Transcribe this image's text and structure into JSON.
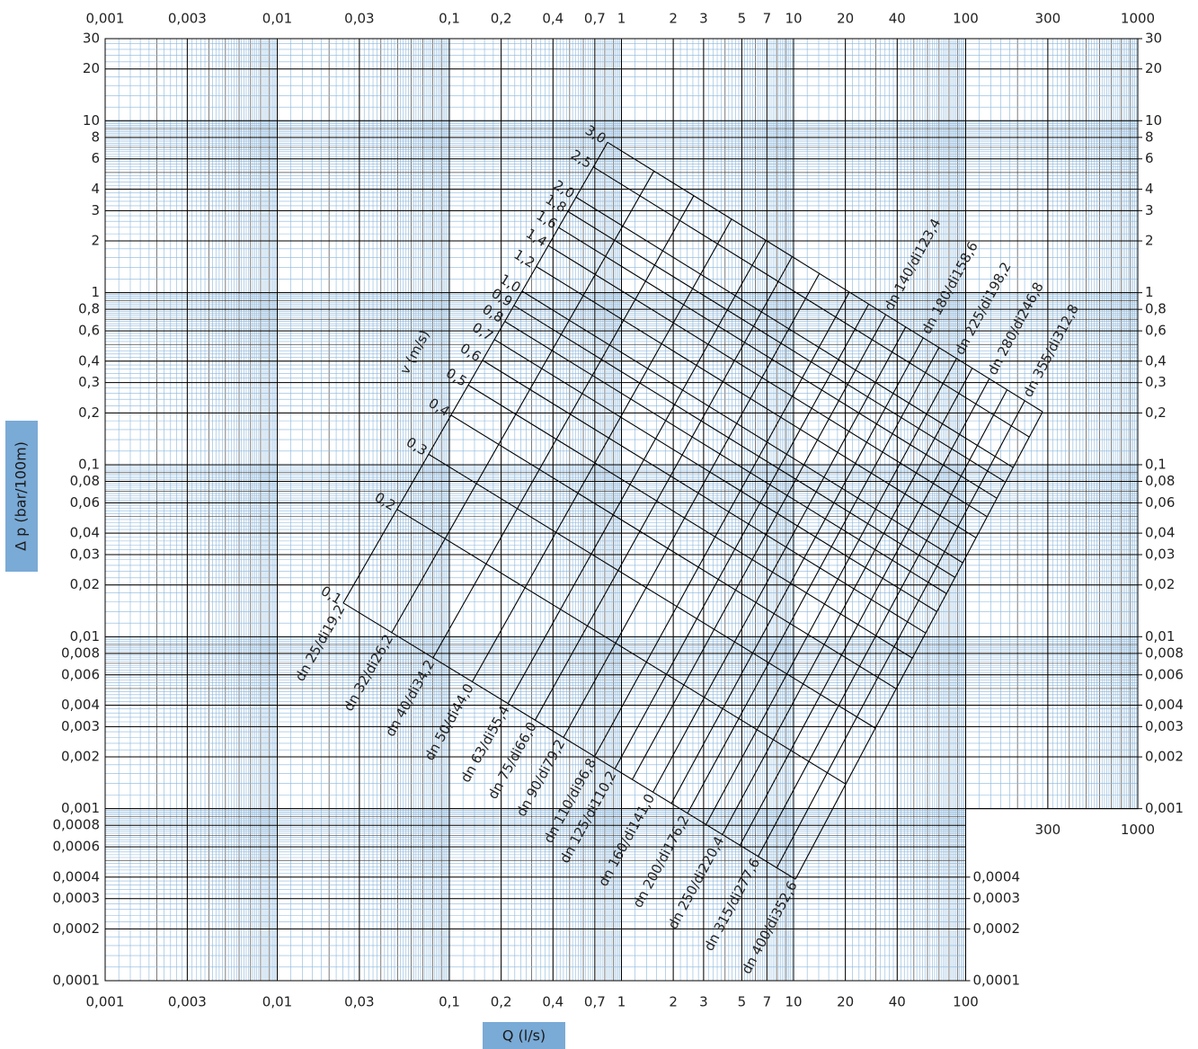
{
  "chart_data": {
    "type": "line",
    "x_label": "Q (l/s)",
    "y_label": "Δ p (bar/100m)",
    "velocity_label": "v (m/s)",
    "log_x": true,
    "log_y": true,
    "grid": true,
    "grid_color": "#8ab6dc",
    "xlim": [
      0.001,
      1000
    ],
    "ylim": [
      0.0001,
      30
    ],
    "grid_cutout": {
      "x": 100,
      "y": 0.001
    },
    "xticks": [
      {
        "value": 0.001,
        "label": "0,001"
      },
      {
        "value": 0.003,
        "label": "0,003"
      },
      {
        "value": 0.01,
        "label": "0,01"
      },
      {
        "value": 0.03,
        "label": "0,03"
      },
      {
        "value": 0.1,
        "label": "0,1"
      },
      {
        "value": 0.2,
        "label": "0,2"
      },
      {
        "value": 0.4,
        "label": "0,4"
      },
      {
        "value": 0.7,
        "label": "0,7"
      },
      1,
      2,
      3,
      5,
      7,
      10,
      20,
      40,
      100,
      300,
      1000
    ],
    "yticks": [
      30,
      20,
      10,
      8,
      6,
      4,
      3,
      2,
      1,
      {
        "value": 0.8,
        "label": "0,8"
      },
      {
        "value": 0.6,
        "label": "0,6"
      },
      {
        "value": 0.4,
        "label": "0,4"
      },
      {
        "value": 0.3,
        "label": "0,3"
      },
      {
        "value": 0.2,
        "label": "0,2"
      },
      {
        "value": 0.1,
        "label": "0,1"
      },
      {
        "value": 0.08,
        "label": "0,08"
      },
      {
        "value": 0.06,
        "label": "0,06"
      },
      {
        "value": 0.04,
        "label": "0,04"
      },
      {
        "value": 0.03,
        "label": "0,03"
      },
      {
        "value": 0.02,
        "label": "0,02"
      },
      {
        "value": 0.01,
        "label": "0,01"
      },
      {
        "value": 0.008,
        "label": "0,008"
      },
      {
        "value": 0.006,
        "label": "0,006"
      },
      {
        "value": 0.004,
        "label": "0,004"
      },
      {
        "value": 0.003,
        "label": "0,003"
      },
      {
        "value": 0.002,
        "label": "0,002"
      },
      {
        "value": 0.001,
        "label": "0,001"
      },
      {
        "value": 0.0008,
        "label": "0,0008"
      },
      {
        "value": 0.0006,
        "label": "0,0006"
      },
      {
        "value": 0.0004,
        "label": "0,0004"
      },
      {
        "value": 0.0003,
        "label": "0,0003"
      },
      {
        "value": 0.0002,
        "label": "0,0002"
      },
      {
        "value": 0.0001,
        "label": "0,0001"
      }
    ],
    "yticks_right": [
      30,
      20,
      10,
      8,
      6,
      4,
      3,
      2,
      1,
      {
        "value": 0.8,
        "label": "0,8"
      },
      {
        "value": 0.6,
        "label": "0,6"
      },
      {
        "value": 0.4,
        "label": "0,4"
      },
      {
        "value": 0.3,
        "label": "0,3"
      },
      {
        "value": 0.2,
        "label": "0,2"
      },
      {
        "value": 0.1,
        "label": "0,1"
      },
      {
        "value": 0.08,
        "label": "0,08"
      },
      {
        "value": 0.06,
        "label": "0,06"
      },
      {
        "value": 0.04,
        "label": "0,04"
      },
      {
        "value": 0.03,
        "label": "0,03"
      },
      {
        "value": 0.02,
        "label": "0,02"
      },
      {
        "value": 0.01,
        "label": "0,01"
      },
      {
        "value": 0.008,
        "label": "0,008"
      },
      {
        "value": 0.006,
        "label": "0,006"
      },
      {
        "value": 0.004,
        "label": "0,004"
      },
      {
        "value": 0.003,
        "label": "0,003"
      },
      {
        "value": 0.002,
        "label": "0,002"
      },
      {
        "value": 0.001,
        "label": "0,001"
      },
      {
        "value": 0.0004,
        "label": "0,0004"
      },
      {
        "value": 0.0003,
        "label": "0,0003"
      },
      {
        "value": 0.0002,
        "label": "0,0002"
      },
      {
        "value": 0.0001,
        "label": "0,0001"
      }
    ],
    "series": [
      {
        "name": "dn 25/di19,2",
        "color": "#000000",
        "label_at": "start",
        "x": [
          0.0242,
          0.83
        ],
        "values": [
          0.0157,
          7.49
        ]
      },
      {
        "name": "dn 32/di26,2",
        "color": "#000000",
        "label_at": "start",
        "x": [
          0.0462,
          1.546
        ],
        "values": [
          0.01055,
          5.1
        ]
      },
      {
        "name": "dn 40/di34,2",
        "color": "#000000",
        "label_at": "start",
        "x": [
          0.0803,
          2.63
        ],
        "values": [
          0.00752,
          3.66
        ]
      },
      {
        "name": "dn 50/di44,0",
        "color": "#000000",
        "label_at": "start",
        "x": [
          0.1357,
          4.36
        ],
        "values": [
          0.00546,
          2.68
        ]
      },
      {
        "name": "dn 63/di55,4",
        "color": "#000000",
        "label_at": "start",
        "x": [
          0.219,
          6.91
        ],
        "values": [
          0.00408,
          2.01
        ]
      },
      {
        "name": "dn 75/di66,0",
        "color": "#000000",
        "label_at": "start",
        "x": [
          0.315,
          9.81
        ],
        "values": [
          0.00327,
          1.62
        ]
      },
      {
        "name": "dn 90/di79,2",
        "color": "#000000",
        "label_at": "start",
        "x": [
          0.46,
          14.1
        ],
        "values": [
          0.00259,
          1.29
        ]
      },
      {
        "name": "dn 110/di96,8",
        "color": "#000000",
        "label_at": "start",
        "x": [
          0.698,
          21.1
        ],
        "values": [
          0.00201,
          1.01
        ]
      },
      {
        "name": "dn 125/di110,2",
        "color": "#000000",
        "label_at": "start",
        "x": [
          0.914,
          27.3
        ],
        "values": [
          0.0017,
          0.858
        ]
      },
      {
        "name": "dn 140/di123,4",
        "color": "#000000",
        "label_at": "end",
        "x": [
          1.156,
          34.3
        ],
        "values": [
          0.00148,
          0.745
        ]
      },
      {
        "name": "dn 160/di141,0",
        "color": "#000000",
        "label_at": "start",
        "x": [
          1.525,
          44.8
        ],
        "values": [
          0.00125,
          0.632
        ]
      },
      {
        "name": "dn 180/di158,6",
        "color": "#000000",
        "label_at": "end",
        "x": [
          1.948,
          56.6
        ],
        "values": [
          0.00107,
          0.546
        ]
      },
      {
        "name": "dn 200/di176,2",
        "color": "#000000",
        "label_at": "start",
        "x": [
          2.42,
          69.9
        ],
        "values": [
          0.000939,
          0.479
        ]
      },
      {
        "name": "dn 225/di198,2",
        "color": "#000000",
        "label_at": "end",
        "x": [
          3.1,
          88.4
        ],
        "values": [
          0.000809,
          0.414
        ]
      },
      {
        "name": "dn 250/di220,4",
        "color": "#000000",
        "label_at": "start",
        "x": [
          3.86,
          109
        ],
        "values": [
          0.000707,
          0.363
        ]
      },
      {
        "name": "dn 280/di246,8",
        "color": "#000000",
        "label_at": "end",
        "x": [
          4.88,
          137
        ],
        "values": [
          0.000612,
          0.316
        ]
      },
      {
        "name": "dn 315/di277,6",
        "color": "#000000",
        "label_at": "start",
        "x": [
          6.23,
          174
        ],
        "values": [
          0.000528,
          0.273
        ]
      },
      {
        "name": "dn 355/di312,8",
        "color": "#000000",
        "label_at": "end",
        "x": [
          7.99,
          220
        ],
        "values": [
          0.000453,
          0.235
        ]
      },
      {
        "name": "dn 400/di352,6",
        "color": "#000000",
        "label_at": "start",
        "x": [
          10.25,
          280
        ],
        "values": [
          0.000389,
          0.203
        ]
      },
      {
        "name": "0,1",
        "color": "#000000",
        "label_at": "start",
        "x": [
          0.0242,
          10.25
        ],
        "values": [
          0.0157,
          0.000389
        ]
      },
      {
        "name": "0,2",
        "color": "#000000",
        "label_at": "start",
        "x": [
          0.0497,
          20.1
        ],
        "values": [
          0.055,
          0.00139
        ]
      },
      {
        "name": "0,3",
        "color": "#000000",
        "label_at": "start",
        "x": [
          0.0758,
          29.8
        ],
        "values": [
          0.115,
          0.00294
        ]
      },
      {
        "name": "0,4",
        "color": "#000000",
        "label_at": "start",
        "x": [
          0.1023,
          39.5
        ],
        "values": [
          0.194,
          0.00498
        ]
      },
      {
        "name": "0,5",
        "color": "#000000",
        "label_at": "start",
        "x": [
          0.129,
          49.0
        ],
        "values": [
          0.29,
          0.00751
        ]
      },
      {
        "name": "0,6",
        "color": "#000000",
        "label_at": "start",
        "x": [
          0.156,
          58.6
        ],
        "values": [
          0.404,
          0.0105
        ]
      },
      {
        "name": "0,7",
        "color": "#000000",
        "label_at": "start",
        "x": [
          0.183,
          68.0
        ],
        "values": [
          0.534,
          0.014
        ]
      },
      {
        "name": "0,8",
        "color": "#000000",
        "label_at": "start",
        "x": [
          0.21,
          77.4
        ],
        "values": [
          0.681,
          0.0178
        ]
      },
      {
        "name": "0,9",
        "color": "#000000",
        "label_at": "start",
        "x": [
          0.237,
          86.8
        ],
        "values": [
          0.843,
          0.0221
        ]
      },
      {
        "name": "1,0",
        "color": "#000000",
        "label_at": "start",
        "x": [
          0.265,
          96.2
        ],
        "values": [
          1.02,
          0.0269
        ]
      },
      {
        "name": "1,2",
        "color": "#000000",
        "label_at": "start",
        "x": [
          0.32,
          115
        ],
        "values": [
          1.42,
          0.0376
        ]
      },
      {
        "name": "1,4",
        "color": "#000000",
        "label_at": "start",
        "x": [
          0.376,
          133
        ],
        "values": [
          1.88,
          0.0499
        ]
      },
      {
        "name": "1,6",
        "color": "#000000",
        "label_at": "start",
        "x": [
          0.432,
          152
        ],
        "values": [
          2.39,
          0.0638
        ]
      },
      {
        "name": "1,8",
        "color": "#000000",
        "label_at": "start",
        "x": [
          0.488,
          170
        ],
        "values": [
          2.97,
          0.0793
        ]
      },
      {
        "name": "2,0",
        "color": "#000000",
        "label_at": "start",
        "x": [
          0.545,
          189
        ],
        "values": [
          3.59,
          0.0962
        ]
      },
      {
        "name": "2,5",
        "color": "#000000",
        "label_at": "start",
        "x": [
          0.687,
          234
        ],
        "values": [
          5.38,
          0.145
        ]
      },
      {
        "name": "3,0",
        "color": "#000000",
        "label_at": "start",
        "x": [
          0.83,
          280
        ],
        "values": [
          7.49,
          0.203
        ]
      }
    ]
  }
}
